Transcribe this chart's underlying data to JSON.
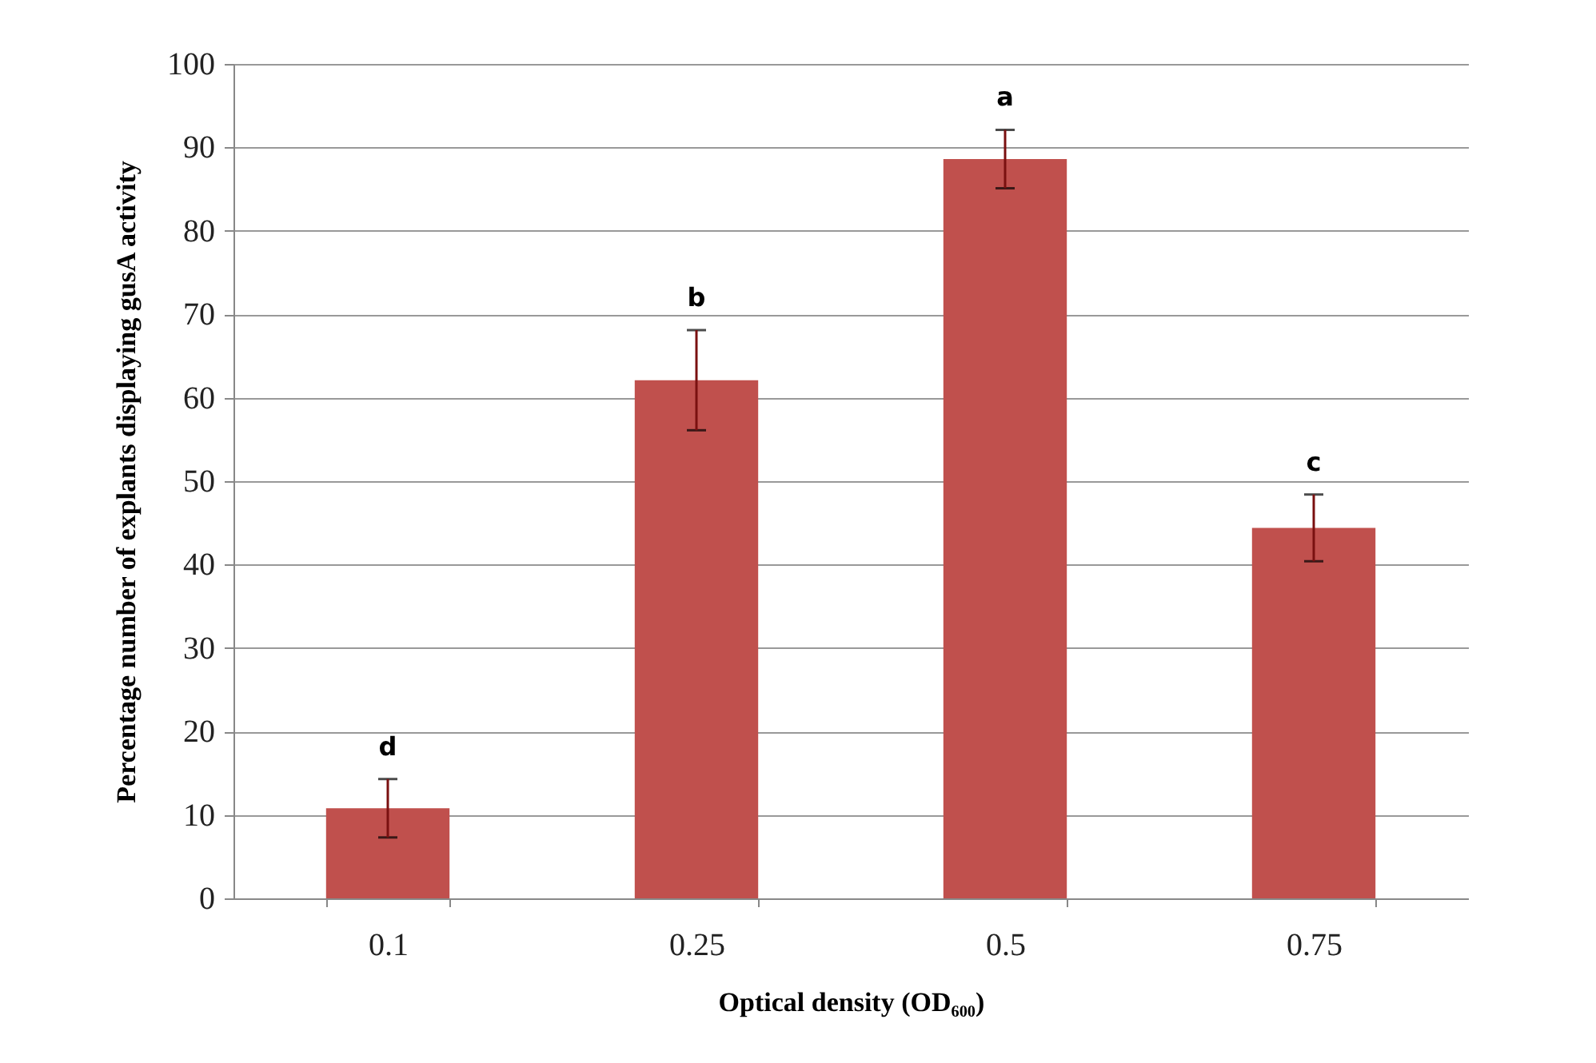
{
  "chart_data": {
    "type": "bar",
    "xlabel": "Optical density (OD₆₀₀)",
    "ylabel": "Percentage number of explants displaying gusA activity",
    "categories": [
      "0.1",
      "0.25",
      "0.5",
      "0.75"
    ],
    "values": [
      10.8,
      62.1,
      88.6,
      44.4
    ],
    "errors": [
      3.5,
      6,
      3.5,
      4
    ],
    "color": "#c0504d",
    "ylim": [
      0,
      100
    ],
    "yticks": [
      0,
      10,
      20,
      30,
      40,
      50,
      60,
      70,
      80,
      90,
      100
    ],
    "grid": "y",
    "annotations": [
      {
        "text": "d",
        "x": "0.1",
        "y": 14.3
      },
      {
        "text": "b",
        "x": "0.25",
        "y": 68.1
      },
      {
        "text": "a",
        "x": "0.5",
        "y": 92.1
      },
      {
        "text": "c",
        "x": "0.75",
        "y": 48.4
      }
    ]
  }
}
